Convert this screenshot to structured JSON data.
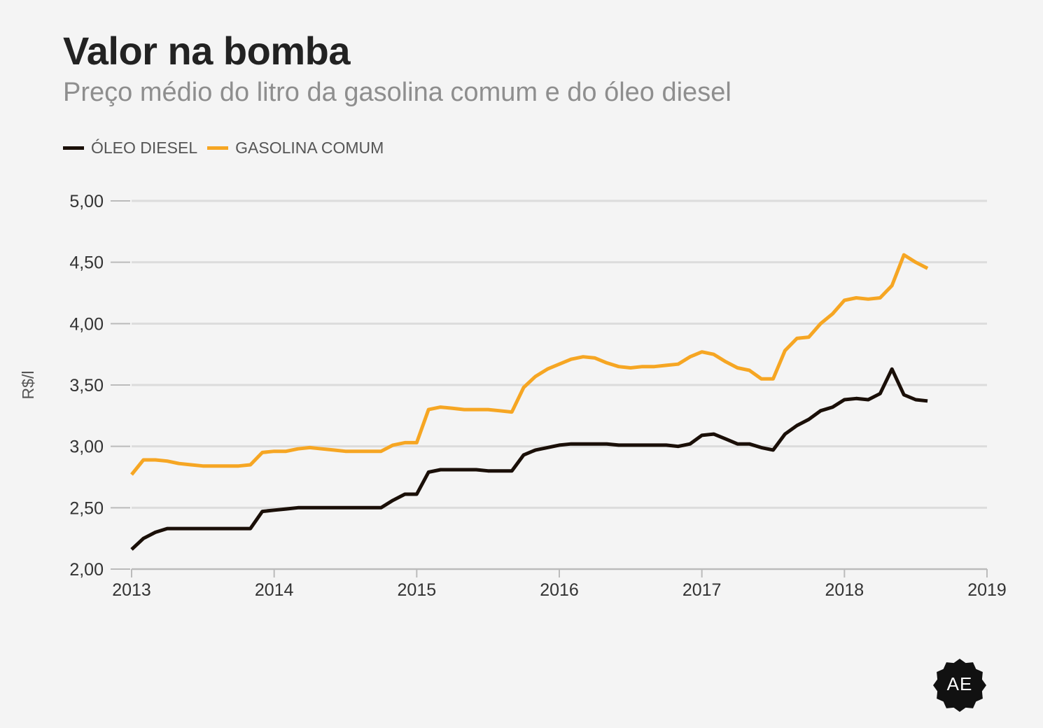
{
  "header": {
    "title": "Valor na bomba",
    "subtitle": "Preço médio do litro da gasolina comum e do óleo diesel"
  },
  "logo": {
    "text": "AE",
    "icon": "badge-logo-icon",
    "color": "#111111"
  },
  "chart_data": {
    "type": "line",
    "title": "Valor na bomba",
    "subtitle": "Preço médio do litro da gasolina comum e do óleo diesel",
    "xlabel": "",
    "ylabel": "R$/l",
    "xlim": [
      2013,
      2019
    ],
    "ylim": [
      2.0,
      5.0
    ],
    "x_ticks": [
      2013,
      2014,
      2015,
      2016,
      2017,
      2018,
      2019
    ],
    "x_tick_labels": [
      "2013",
      "2014",
      "2015",
      "2016",
      "2017",
      "2018",
      "2019"
    ],
    "y_ticks": [
      2.0,
      2.5,
      3.0,
      3.5,
      4.0,
      4.5,
      5.0
    ],
    "y_tick_labels": [
      "2,00",
      "2,50",
      "3,00",
      "3,50",
      "4,00",
      "4,50",
      "5,00"
    ],
    "grid": "horizontal",
    "legend_position": "top-left",
    "x": [
      2013.0,
      2013.083,
      2013.167,
      2013.25,
      2013.333,
      2013.417,
      2013.5,
      2013.583,
      2013.667,
      2013.75,
      2013.833,
      2013.917,
      2014.0,
      2014.083,
      2014.167,
      2014.25,
      2014.333,
      2014.417,
      2014.5,
      2014.583,
      2014.667,
      2014.75,
      2014.833,
      2014.917,
      2015.0,
      2015.083,
      2015.167,
      2015.25,
      2015.333,
      2015.417,
      2015.5,
      2015.583,
      2015.667,
      2015.75,
      2015.833,
      2015.917,
      2016.0,
      2016.083,
      2016.167,
      2016.25,
      2016.333,
      2016.417,
      2016.5,
      2016.583,
      2016.667,
      2016.75,
      2016.833,
      2016.917,
      2017.0,
      2017.083,
      2017.167,
      2017.25,
      2017.333,
      2017.417,
      2017.5,
      2017.583,
      2017.667,
      2017.75,
      2017.833,
      2017.917,
      2018.0,
      2018.083,
      2018.167,
      2018.25,
      2018.333,
      2018.417,
      2018.5,
      2018.583
    ],
    "series": [
      {
        "name": "ÓLEO DIESEL",
        "color": "#1a0f08",
        "values": [
          2.16,
          2.25,
          2.3,
          2.33,
          2.33,
          2.33,
          2.33,
          2.33,
          2.33,
          2.33,
          2.33,
          2.47,
          2.48,
          2.49,
          2.5,
          2.5,
          2.5,
          2.5,
          2.5,
          2.5,
          2.5,
          2.5,
          2.56,
          2.61,
          2.61,
          2.79,
          2.81,
          2.81,
          2.81,
          2.81,
          2.8,
          2.8,
          2.8,
          2.93,
          2.97,
          2.99,
          3.01,
          3.02,
          3.02,
          3.02,
          3.02,
          3.01,
          3.01,
          3.01,
          3.01,
          3.01,
          3.0,
          3.02,
          3.09,
          3.1,
          3.06,
          3.02,
          3.02,
          2.99,
          2.97,
          3.1,
          3.17,
          3.22,
          3.29,
          3.32,
          3.38,
          3.39,
          3.38,
          3.43,
          3.63,
          3.42,
          3.38,
          3.37
        ]
      },
      {
        "name": "GASOLINA COMUM",
        "color": "#f6a623",
        "values": [
          2.77,
          2.89,
          2.89,
          2.88,
          2.86,
          2.85,
          2.84,
          2.84,
          2.84,
          2.84,
          2.85,
          2.95,
          2.96,
          2.96,
          2.98,
          2.99,
          2.98,
          2.97,
          2.96,
          2.96,
          2.96,
          2.96,
          3.01,
          3.03,
          3.03,
          3.3,
          3.32,
          3.31,
          3.3,
          3.3,
          3.3,
          3.29,
          3.28,
          3.48,
          3.57,
          3.63,
          3.67,
          3.71,
          3.73,
          3.72,
          3.68,
          3.65,
          3.64,
          3.65,
          3.65,
          3.66,
          3.67,
          3.73,
          3.77,
          3.75,
          3.69,
          3.64,
          3.62,
          3.55,
          3.55,
          3.78,
          3.88,
          3.89,
          4.0,
          4.08,
          4.19,
          4.21,
          4.2,
          4.21,
          4.31,
          4.56,
          4.5,
          4.45
        ]
      }
    ]
  }
}
